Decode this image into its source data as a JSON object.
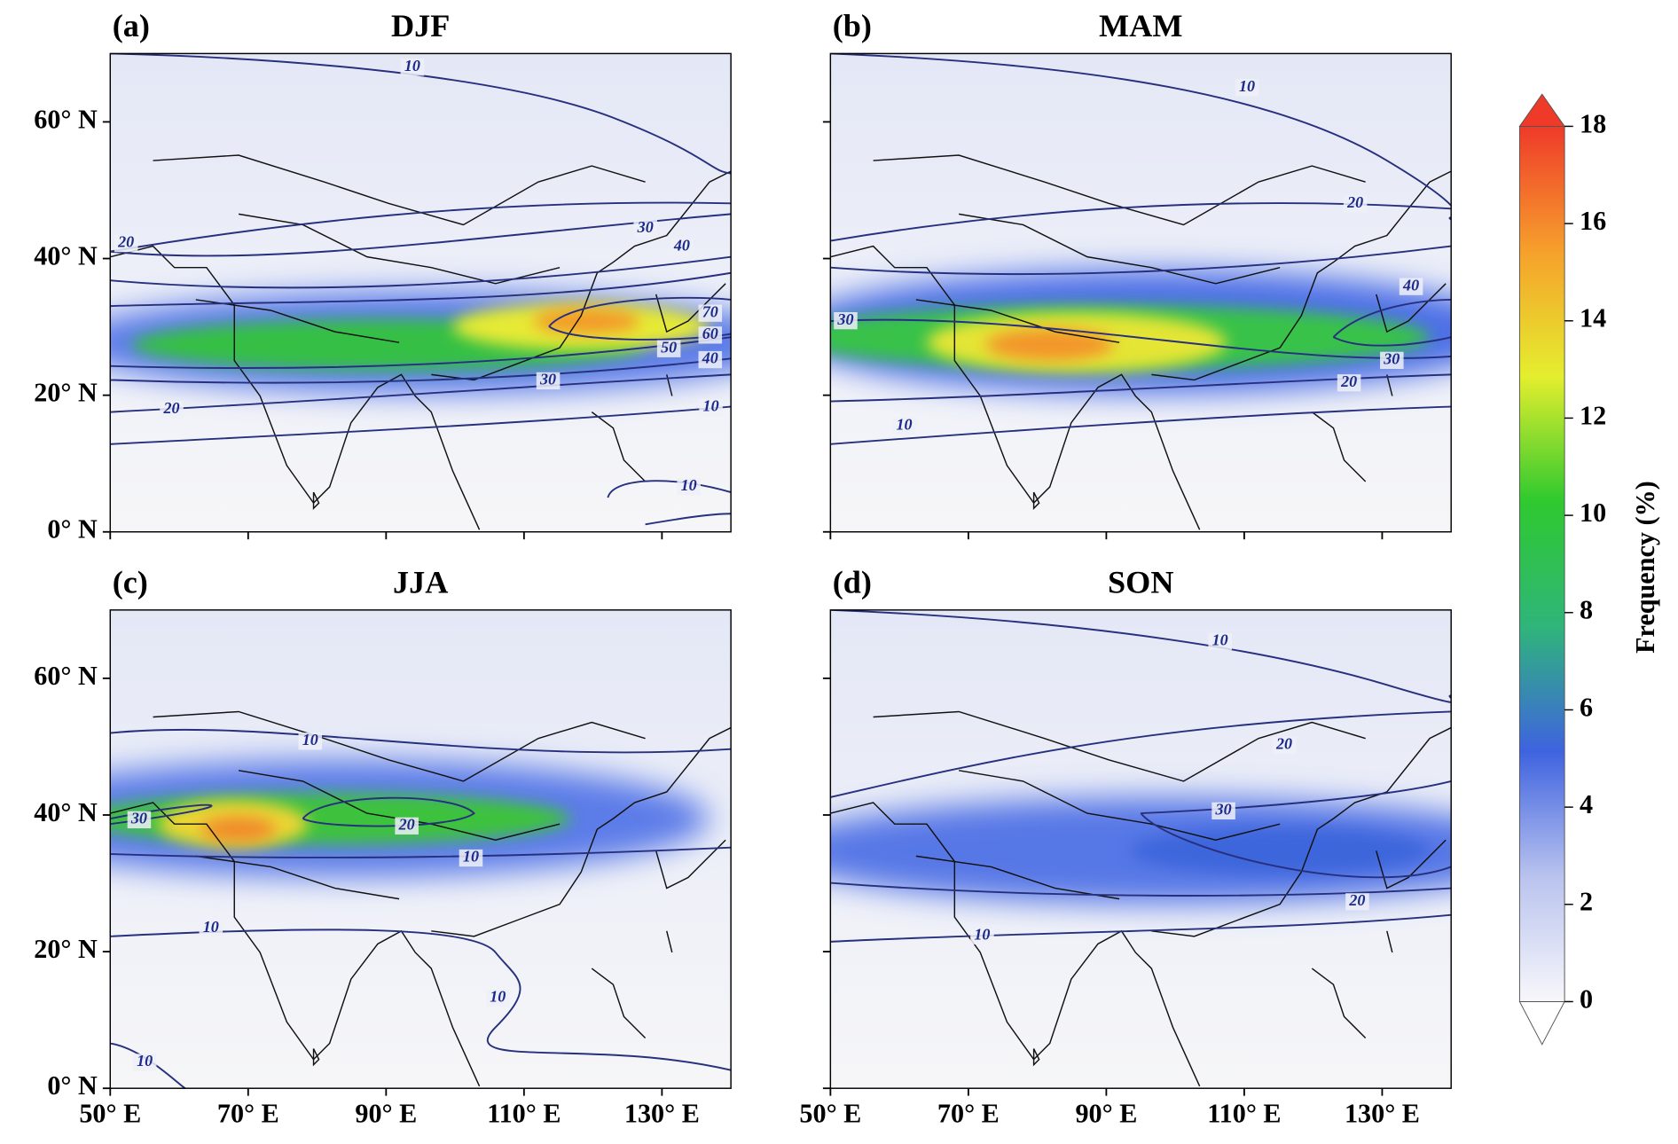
{
  "panels": [
    {
      "label": "(a)",
      "title": "DJF",
      "contour_labels": [
        {
          "level": 10,
          "lon": 93.8,
          "lat": 68
        },
        {
          "level": 30,
          "lon": 127.6,
          "lat": 44.4
        },
        {
          "level": 20,
          "lon": 52.3,
          "lat": 42.2
        },
        {
          "level": 40,
          "lon": 132.9,
          "lat": 41.7
        },
        {
          "level": 70,
          "lon": 137,
          "lat": 32
        },
        {
          "level": 60,
          "lon": 137,
          "lat": 28.8
        },
        {
          "level": 50,
          "lon": 131,
          "lat": 26.8
        },
        {
          "level": 40,
          "lon": 137,
          "lat": 25.2
        },
        {
          "level": 30,
          "lon": 113.5,
          "lat": 22.1
        },
        {
          "level": 20,
          "lon": 58.9,
          "lat": 17.9
        },
        {
          "level": 10,
          "lon": 137.1,
          "lat": 18.2
        },
        {
          "level": 10,
          "lon": 133.9,
          "lat": 6.6
        }
      ]
    },
    {
      "label": "(b)",
      "title": "MAM",
      "contour_labels": [
        {
          "level": 10,
          "lon": 110.4,
          "lat": 65
        },
        {
          "level": 20,
          "lon": 126.1,
          "lat": 48
        },
        {
          "level": 40,
          "lon": 134.2,
          "lat": 35.9
        },
        {
          "level": 30,
          "lon": 52.2,
          "lat": 30.9
        },
        {
          "level": 30,
          "lon": 131.4,
          "lat": 25.1
        },
        {
          "level": 20,
          "lon": 125.2,
          "lat": 21.8
        },
        {
          "level": 10,
          "lon": 60.7,
          "lat": 15.5
        }
      ]
    },
    {
      "label": "(c)",
      "title": "JJA",
      "contour_labels": [
        {
          "level": 10,
          "lon": 79,
          "lat": 50.8
        },
        {
          "level": 30,
          "lon": 54.2,
          "lat": 39.3
        },
        {
          "level": 20,
          "lon": 93,
          "lat": 38.4
        },
        {
          "level": 10,
          "lon": 102.3,
          "lat": 33.7
        },
        {
          "level": 10,
          "lon": 64.6,
          "lat": 23.4
        },
        {
          "level": 10,
          "lon": 106.2,
          "lat": 13.2
        },
        {
          "level": 10,
          "lon": 55,
          "lat": 3.8
        }
      ]
    },
    {
      "label": "(d)",
      "title": "SON",
      "contour_labels": [
        {
          "level": 10,
          "lon": 106.5,
          "lat": 65.4
        },
        {
          "level": 20,
          "lon": 115.8,
          "lat": 50.2
        },
        {
          "level": 30,
          "lon": 107,
          "lat": 40.6
        },
        {
          "level": 20,
          "lon": 126.4,
          "lat": 27.3
        },
        {
          "level": 10,
          "lon": 72,
          "lat": 22.3
        }
      ]
    }
  ],
  "axes": {
    "xlim": [
      50,
      140
    ],
    "ylim": [
      0,
      70
    ],
    "xticks": [
      {
        "value": 50,
        "label": "50° E"
      },
      {
        "value": 70,
        "label": "70° E"
      },
      {
        "value": 90,
        "label": "90° E"
      },
      {
        "value": 110,
        "label": "110° E"
      },
      {
        "value": 130,
        "label": "130° E"
      }
    ],
    "yticks": [
      {
        "value": 0,
        "label": "0° N"
      },
      {
        "value": 20,
        "label": "20° N"
      },
      {
        "value": 40,
        "label": "40° N"
      },
      {
        "value": 60,
        "label": "60° N"
      }
    ]
  },
  "colorbar": {
    "label": "Frequency (%)",
    "lim": [
      0,
      18
    ],
    "ticks": [
      0,
      2,
      4,
      6,
      8,
      10,
      12,
      14,
      16,
      18
    ],
    "colors": [
      "#f7f7fb",
      "#b9c3ee",
      "#3f63e0",
      "#2fb57a",
      "#2fc92f",
      "#e4ee2e",
      "#f6a02c",
      "#ef3a2a"
    ]
  }
}
